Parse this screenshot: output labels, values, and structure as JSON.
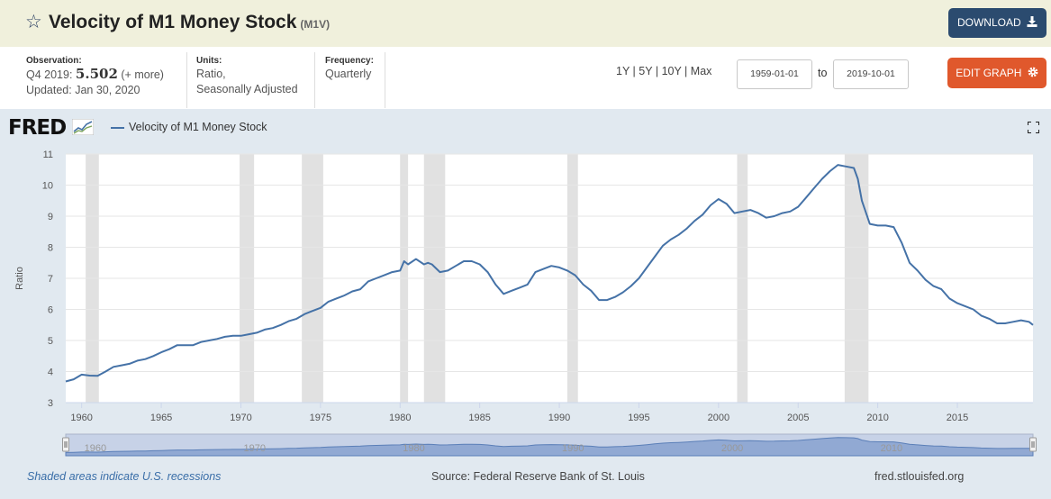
{
  "header": {
    "title": "Velocity of M1 Money Stock",
    "series_id": "(M1V)",
    "download_label": "DOWNLOAD"
  },
  "meta": {
    "observation_label": "Observation:",
    "observation_period": "Q4 2019:",
    "observation_value": "5.502",
    "observation_more": "(+ more)",
    "updated": "Updated: Jan 30, 2020",
    "units_label": "Units:",
    "units_line1": "Ratio,",
    "units_line2": "Seasonally Adjusted",
    "frequency_label": "Frequency:",
    "frequency_value": "Quarterly"
  },
  "controls": {
    "range_1y": "1Y",
    "range_5y": "5Y",
    "range_10y": "10Y",
    "range_max": "Max",
    "start_date": "1959-01-01",
    "to_label": "to",
    "end_date": "2019-10-01",
    "edit_label": "EDIT GRAPH"
  },
  "logo": {
    "text": "FRED"
  },
  "footer": {
    "recession_note": "Shaded areas indicate U.S. recessions",
    "source": "Source: Federal Reserve Bank of St. Louis",
    "site": "fred.stlouisfed.org"
  },
  "colors": {
    "line": "#4572a7",
    "recession": "#e1e1e1",
    "download_button": "#2b4b6f",
    "edit_button": "#e0582c",
    "header_bg": "#f0f0dc",
    "chart_bg": "#e1e9f0"
  },
  "icons": {
    "star": "star-icon",
    "download": "download-icon",
    "gear": "gear-icon",
    "fullscreen": "fullscreen-icon"
  },
  "chart_data": {
    "type": "line",
    "xlabel": "",
    "ylabel": "Ratio",
    "x_range": [
      1959.0,
      2019.75
    ],
    "ylim": [
      3,
      11
    ],
    "yticks": [
      3,
      4,
      5,
      6,
      7,
      8,
      9,
      10,
      11
    ],
    "xticks": [
      1960,
      1965,
      1970,
      1975,
      1980,
      1985,
      1990,
      1995,
      2000,
      2005,
      2010,
      2015
    ],
    "navigator_labels": [
      1960,
      1970,
      1980,
      1990,
      2000,
      2010
    ],
    "grid": true,
    "legend_position": "top-left",
    "recessions": [
      [
        1960.25,
        1961.08
      ],
      [
        1969.92,
        1970.83
      ],
      [
        1973.83,
        1975.17
      ],
      [
        1980.0,
        1980.5
      ],
      [
        1981.5,
        1982.83
      ],
      [
        1990.5,
        1991.17
      ],
      [
        2001.17,
        2001.83
      ],
      [
        2007.92,
        2009.42
      ]
    ],
    "series": [
      {
        "name": "Velocity of M1 Money Stock",
        "x": [
          1959.0,
          1959.5,
          1960.0,
          1960.5,
          1961.0,
          1961.5,
          1962.0,
          1962.5,
          1963.0,
          1963.5,
          1964.0,
          1964.5,
          1965.0,
          1965.5,
          1966.0,
          1966.5,
          1967.0,
          1967.5,
          1968.0,
          1968.5,
          1969.0,
          1969.5,
          1970.0,
          1970.5,
          1971.0,
          1971.5,
          1972.0,
          1972.5,
          1973.0,
          1973.5,
          1974.0,
          1974.5,
          1975.0,
          1975.5,
          1976.0,
          1976.5,
          1977.0,
          1977.5,
          1978.0,
          1978.5,
          1979.0,
          1979.5,
          1980.0,
          1980.25,
          1980.5,
          1981.0,
          1981.5,
          1981.75,
          1982.0,
          1982.5,
          1983.0,
          1983.5,
          1984.0,
          1984.5,
          1985.0,
          1985.5,
          1986.0,
          1986.5,
          1987.0,
          1987.5,
          1988.0,
          1988.5,
          1989.0,
          1989.5,
          1990.0,
          1990.5,
          1991.0,
          1991.5,
          1992.0,
          1992.5,
          1993.0,
          1993.5,
          1994.0,
          1994.5,
          1995.0,
          1995.5,
          1996.0,
          1996.5,
          1997.0,
          1997.5,
          1998.0,
          1998.5,
          1999.0,
          1999.5,
          2000.0,
          2000.5,
          2001.0,
          2001.5,
          2002.0,
          2002.5,
          2003.0,
          2003.5,
          2004.0,
          2004.5,
          2005.0,
          2005.5,
          2006.0,
          2006.5,
          2007.0,
          2007.5,
          2008.0,
          2008.5,
          2008.75,
          2009.0,
          2009.5,
          2010.0,
          2010.5,
          2011.0,
          2011.5,
          2012.0,
          2012.5,
          2013.0,
          2013.5,
          2014.0,
          2014.5,
          2015.0,
          2015.5,
          2016.0,
          2016.5,
          2017.0,
          2017.5,
          2018.0,
          2018.5,
          2019.0,
          2019.5,
          2019.75
        ],
        "values": [
          3.68,
          3.75,
          3.9,
          3.87,
          3.86,
          4.0,
          4.15,
          4.2,
          4.25,
          4.35,
          4.4,
          4.5,
          4.62,
          4.72,
          4.85,
          4.85,
          4.85,
          4.95,
          5.0,
          5.05,
          5.12,
          5.15,
          5.15,
          5.2,
          5.25,
          5.35,
          5.4,
          5.5,
          5.62,
          5.7,
          5.85,
          5.95,
          6.05,
          6.25,
          6.35,
          6.45,
          6.58,
          6.65,
          6.9,
          7.0,
          7.1,
          7.2,
          7.25,
          7.55,
          7.45,
          7.62,
          7.45,
          7.5,
          7.45,
          7.2,
          7.25,
          7.4,
          7.55,
          7.55,
          7.45,
          7.2,
          6.8,
          6.5,
          6.6,
          6.7,
          6.8,
          7.2,
          7.3,
          7.4,
          7.35,
          7.25,
          7.1,
          6.8,
          6.6,
          6.3,
          6.3,
          6.4,
          6.55,
          6.75,
          7.0,
          7.35,
          7.7,
          8.05,
          8.25,
          8.4,
          8.6,
          8.85,
          9.05,
          9.35,
          9.55,
          9.4,
          9.1,
          9.15,
          9.2,
          9.1,
          8.95,
          9.0,
          9.1,
          9.15,
          9.3,
          9.6,
          9.9,
          10.2,
          10.45,
          10.65,
          10.6,
          10.55,
          10.2,
          9.5,
          8.75,
          8.7,
          8.7,
          8.65,
          8.15,
          7.5,
          7.25,
          6.95,
          6.75,
          6.65,
          6.35,
          6.2,
          6.1,
          6.0,
          5.8,
          5.7,
          5.55,
          5.55,
          5.6,
          5.65,
          5.6,
          5.5
        ]
      }
    ]
  }
}
